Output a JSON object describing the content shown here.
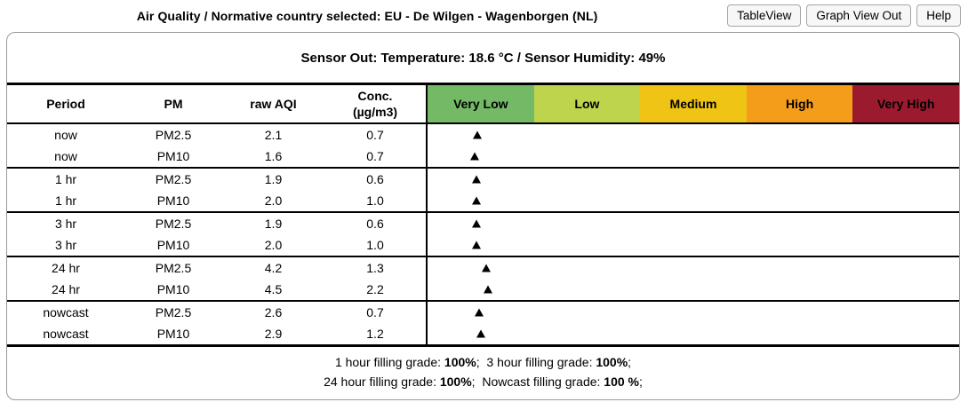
{
  "titlebar": {
    "title": "Air Quality / Normative country selected: EU - De Wilgen - Wagenborgen (NL)",
    "buttons": [
      {
        "label": "TableView"
      },
      {
        "label": "Graph View Out"
      },
      {
        "label": "Help"
      }
    ]
  },
  "panel": {
    "sensor_status": "Sensor Out: Temperature: 18.6 °C / Sensor Humidity: 49%",
    "table": {
      "columns": [
        {
          "label": "Period"
        },
        {
          "label": "PM"
        },
        {
          "label": "raw AQI"
        },
        {
          "label": "Conc.",
          "sublabel": "(µg/m3)"
        }
      ],
      "scale": [
        {
          "label": "Very Low",
          "color": "#74b966"
        },
        {
          "label": "Low",
          "color": "#bfd44d"
        },
        {
          "label": "Medium",
          "color": "#f0c414"
        },
        {
          "label": "High",
          "color": "#f49d1b"
        },
        {
          "label": "Very High",
          "color": "#9c1a2e"
        }
      ],
      "marker_glyph": "black-up-triangle",
      "groups": [
        {
          "rows": [
            {
              "period": "now",
              "pm": "PM2.5",
              "raw_aqi": "2.1",
              "conc": "0.7"
            },
            {
              "period": "now",
              "pm": "PM10",
              "raw_aqi": "1.6",
              "conc": "0.7"
            }
          ]
        },
        {
          "rows": [
            {
              "period": "1 hr",
              "pm": "PM2.5",
              "raw_aqi": "1.9",
              "conc": "0.6"
            },
            {
              "period": "1 hr",
              "pm": "PM10",
              "raw_aqi": "2.0",
              "conc": "1.0"
            }
          ]
        },
        {
          "rows": [
            {
              "period": "3 hr",
              "pm": "PM2.5",
              "raw_aqi": "1.9",
              "conc": "0.6"
            },
            {
              "period": "3 hr",
              "pm": "PM10",
              "raw_aqi": "2.0",
              "conc": "1.0"
            }
          ]
        },
        {
          "rows": [
            {
              "period": "24 hr",
              "pm": "PM2.5",
              "raw_aqi": "4.2",
              "conc": "1.3"
            },
            {
              "period": "24 hr",
              "pm": "PM10",
              "raw_aqi": "4.5",
              "conc": "2.2"
            }
          ]
        },
        {
          "rows": [
            {
              "period": "nowcast",
              "pm": "PM2.5",
              "raw_aqi": "2.6",
              "conc": "0.7"
            },
            {
              "period": "nowcast",
              "pm": "PM10",
              "raw_aqi": "2.9",
              "conc": "1.2"
            }
          ]
        }
      ]
    },
    "footer": {
      "lines": [
        [
          {
            "t": "1 hour filling grade: "
          },
          {
            "t": "100%",
            "b": true
          },
          {
            "t": ";  3 hour filling grade: "
          },
          {
            "t": "100%",
            "b": true
          },
          {
            "t": ";"
          }
        ],
        [
          {
            "t": "24 hour filling grade: "
          },
          {
            "t": "100%",
            "b": true
          },
          {
            "t": ";  Nowcast filling grade: "
          },
          {
            "t": "100 %",
            "b": true
          },
          {
            "t": ";"
          }
        ]
      ]
    }
  }
}
